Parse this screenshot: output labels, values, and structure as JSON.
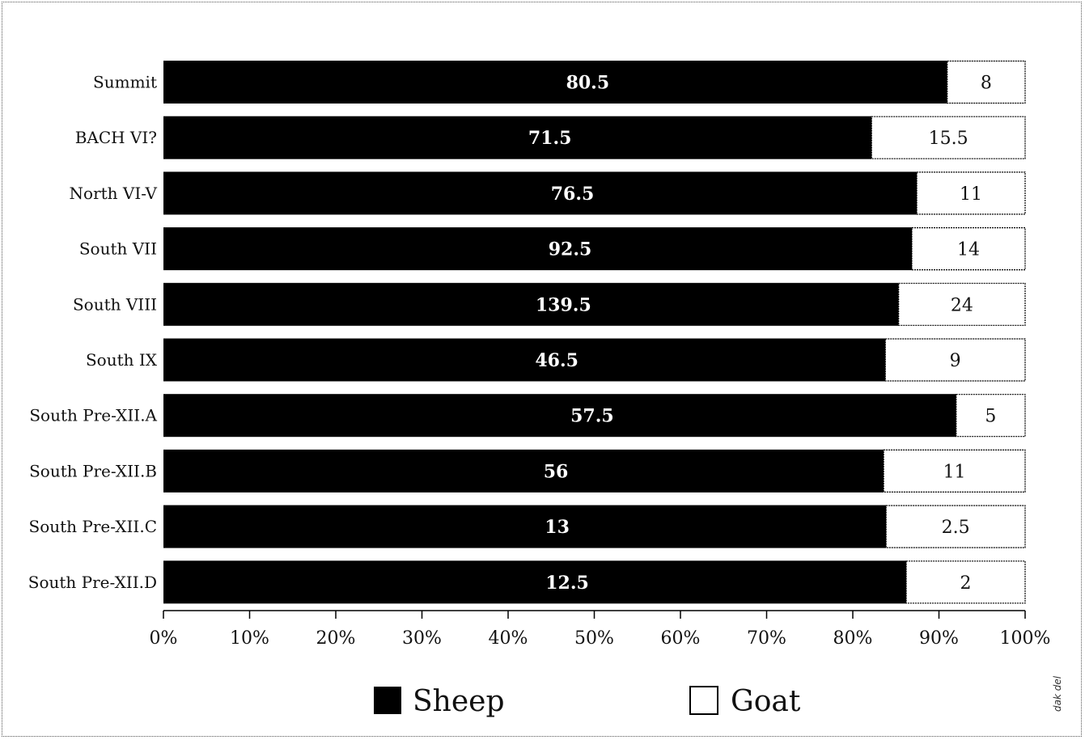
{
  "chart_data": {
    "type": "bar",
    "orientation": "horizontal",
    "stacked": "percent",
    "categories": [
      "Summit",
      "BACH VI?",
      "North VI-V",
      "South VII",
      "South VIII",
      "South IX",
      "South Pre-XII.A",
      "South Pre-XII.B",
      "South Pre-XII.C",
      "South Pre-XII.D"
    ],
    "series": [
      {
        "name": "Sheep",
        "color": "#000000",
        "values": [
          80.5,
          71.5,
          76.5,
          92.5,
          139.5,
          46.5,
          57.5,
          56,
          13,
          12.5
        ]
      },
      {
        "name": "Goat",
        "color": "#ffffff",
        "values": [
          8,
          15.5,
          11,
          14,
          24,
          9,
          5,
          11,
          2.5,
          2
        ]
      }
    ],
    "value_labels": {
      "sheep": [
        "80.5",
        "71.5",
        "76.5",
        "92.5",
        "139.5",
        "46.5",
        "57.5",
        "56",
        "13",
        "12.5"
      ],
      "goat": [
        "8",
        "15.5",
        "11",
        "14",
        "24",
        "9",
        "5",
        "11",
        "2.5",
        "2"
      ]
    },
    "x_ticks": [
      "0%",
      "10%",
      "20%",
      "30%",
      "40%",
      "50%",
      "60%",
      "70%",
      "80%",
      "90%",
      "100%"
    ],
    "xlim": [
      0,
      100
    ],
    "grid": false,
    "legend_position": "bottom-center",
    "title": "",
    "xlabel": "",
    "ylabel": ""
  },
  "credit": "dak del"
}
